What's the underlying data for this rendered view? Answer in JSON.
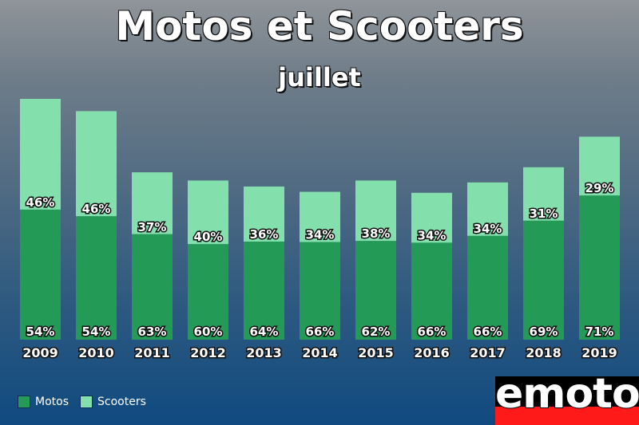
{
  "header": {
    "title": "Motos et Scooters",
    "subtitle": "juillet"
  },
  "legend": {
    "motos": "Motos",
    "scooters": "Scooters"
  },
  "logo": {
    "text": "emoto"
  },
  "colors": {
    "motos": "#249a57",
    "scooters": "#83e0ad"
  },
  "chart_data": {
    "type": "bar",
    "stacked": true,
    "title": "Motos et Scooters",
    "subtitle": "juillet",
    "categories": [
      "2009",
      "2010",
      "2011",
      "2012",
      "2013",
      "2014",
      "2015",
      "2016",
      "2017",
      "2018",
      "2019"
    ],
    "series": [
      {
        "name": "Motos",
        "values": [
          54,
          54,
          63,
          60,
          64,
          66,
          62,
          66,
          66,
          69,
          71
        ],
        "labels": [
          "54%",
          "54%",
          "63%",
          "60%",
          "64%",
          "66%",
          "62%",
          "66%",
          "66%",
          "69%",
          "71%"
        ]
      },
      {
        "name": "Scooters",
        "values": [
          46,
          46,
          37,
          40,
          36,
          34,
          38,
          34,
          34,
          31,
          29
        ],
        "labels": [
          "46%",
          "46%",
          "37%",
          "40%",
          "36%",
          "34%",
          "38%",
          "34%",
          "34%",
          "31%",
          "29%"
        ]
      }
    ],
    "relative_totals": [
      100,
      94.9,
      69.5,
      66.1,
      63.6,
      61.4,
      66.1,
      61.0,
      65.3,
      71.6,
      84.3
    ],
    "grid": false,
    "legend_position": "bottom-left"
  }
}
